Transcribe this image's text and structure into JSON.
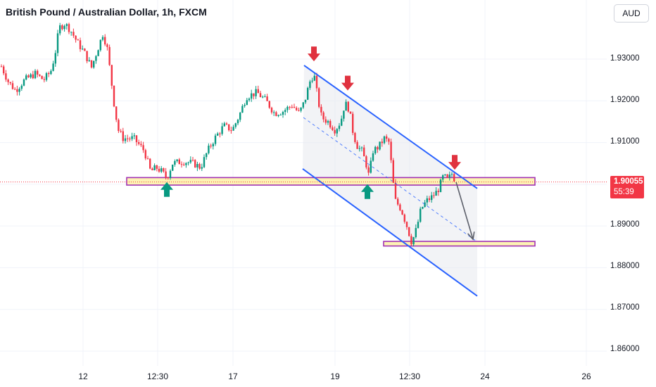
{
  "title": "British Pound / Australian Dollar, 1h, FXCM",
  "currency_button": "AUD",
  "price_axis": {
    "labels": [
      "1.93000",
      "1.92000",
      "1.91000",
      "1.90000",
      "1.89000",
      "1.88000",
      "1.87000",
      "1.86000"
    ]
  },
  "time_axis": {
    "labels": [
      "12",
      "12:30",
      "17",
      "19",
      "12:30",
      "24",
      "26"
    ]
  },
  "last_price": {
    "value": "1.90055",
    "countdown": "55:39"
  },
  "colors": {
    "up": "#089981",
    "down": "#f23645",
    "channel": "#2962ff",
    "zone_fill": "#fdf3b0",
    "zone_border": "#9c27b0",
    "arrow_down": "#e0323f",
    "arrow_up": "#089981",
    "projection": "#5d606b"
  },
  "chart_data": {
    "type": "candlestick",
    "title": "British Pound / Australian Dollar, 1h, FXCM",
    "y_axis_range": [
      1.856,
      1.937
    ],
    "close_path": [
      {
        "x": 0,
        "y": 1.929
      },
      {
        "x": 12,
        "y": 1.9245
      },
      {
        "x": 22,
        "y": 1.9225
      },
      {
        "x": 35,
        "y": 1.925
      },
      {
        "x": 50,
        "y": 1.9265
      },
      {
        "x": 62,
        "y": 1.925
      },
      {
        "x": 72,
        "y": 1.927
      },
      {
        "x": 78,
        "y": 1.931
      },
      {
        "x": 84,
        "y": 1.9375
      },
      {
        "x": 92,
        "y": 1.9385
      },
      {
        "x": 100,
        "y": 1.937
      },
      {
        "x": 110,
        "y": 1.934
      },
      {
        "x": 120,
        "y": 1.9315
      },
      {
        "x": 130,
        "y": 1.928
      },
      {
        "x": 138,
        "y": 1.932
      },
      {
        "x": 146,
        "y": 1.936
      },
      {
        "x": 152,
        "y": 1.933
      },
      {
        "x": 158,
        "y": 1.925
      },
      {
        "x": 163,
        "y": 1.918
      },
      {
        "x": 168,
        "y": 1.913
      },
      {
        "x": 175,
        "y": 1.911
      },
      {
        "x": 190,
        "y": 1.911
      },
      {
        "x": 205,
        "y": 1.908
      },
      {
        "x": 214,
        "y": 1.903
      },
      {
        "x": 222,
        "y": 1.904
      },
      {
        "x": 230,
        "y": 1.903
      },
      {
        "x": 237,
        "y": 1.9015
      },
      {
        "x": 245,
        "y": 1.905
      },
      {
        "x": 260,
        "y": 1.9055
      },
      {
        "x": 275,
        "y": 1.905
      },
      {
        "x": 285,
        "y": 1.904
      },
      {
        "x": 295,
        "y": 1.908
      },
      {
        "x": 305,
        "y": 1.911
      },
      {
        "x": 318,
        "y": 1.914
      },
      {
        "x": 330,
        "y": 1.913
      },
      {
        "x": 340,
        "y": 1.9165
      },
      {
        "x": 350,
        "y": 1.921
      },
      {
        "x": 365,
        "y": 1.922
      },
      {
        "x": 378,
        "y": 1.92
      },
      {
        "x": 390,
        "y": 1.917
      },
      {
        "x": 402,
        "y": 1.9175
      },
      {
        "x": 415,
        "y": 1.919
      },
      {
        "x": 425,
        "y": 1.917
      },
      {
        "x": 433,
        "y": 1.92
      },
      {
        "x": 440,
        "y": 1.9245
      },
      {
        "x": 446,
        "y": 1.9265
      },
      {
        "x": 452,
        "y": 1.92
      },
      {
        "x": 457,
        "y": 1.916
      },
      {
        "x": 466,
        "y": 1.915
      },
      {
        "x": 476,
        "y": 1.913
      },
      {
        "x": 484,
        "y": 1.915
      },
      {
        "x": 490,
        "y": 1.9195
      },
      {
        "x": 496,
        "y": 1.918
      },
      {
        "x": 502,
        "y": 1.912
      },
      {
        "x": 508,
        "y": 1.909
      },
      {
        "x": 514,
        "y": 1.908
      },
      {
        "x": 520,
        "y": 1.905
      },
      {
        "x": 524,
        "y": 1.902
      },
      {
        "x": 530,
        "y": 1.908
      },
      {
        "x": 538,
        "y": 1.909
      },
      {
        "x": 546,
        "y": 1.911
      },
      {
        "x": 553,
        "y": 1.91
      },
      {
        "x": 558,
        "y": 1.901
      },
      {
        "x": 562,
        "y": 1.896
      },
      {
        "x": 570,
        "y": 1.894
      },
      {
        "x": 578,
        "y": 1.89
      },
      {
        "x": 585,
        "y": 1.886
      },
      {
        "x": 592,
        "y": 1.8895
      },
      {
        "x": 598,
        "y": 1.894
      },
      {
        "x": 606,
        "y": 1.896
      },
      {
        "x": 614,
        "y": 1.897
      },
      {
        "x": 622,
        "y": 1.8985
      },
      {
        "x": 630,
        "y": 1.902
      },
      {
        "x": 636,
        "y": 1.901
      },
      {
        "x": 642,
        "y": 1.9025
      },
      {
        "x": 648,
        "y": 1.9005
      }
    ],
    "channel": {
      "upper": [
        {
          "x": 432,
          "y": 1.9285
        },
        {
          "x": 678,
          "y": 1.899
        }
      ],
      "lower": [
        {
          "x": 430,
          "y": 1.9037
        },
        {
          "x": 678,
          "y": 1.8732
        }
      ],
      "midline": [
        {
          "x": 431,
          "y": 1.916
        },
        {
          "x": 678,
          "y": 1.8862
        }
      ]
    },
    "zones": [
      {
        "from_x": 180,
        "to_x": 760,
        "low": 1.8998,
        "high": 1.9016
      },
      {
        "from_x": 545,
        "to_x": 760,
        "low": 1.8852,
        "high": 1.8863
      }
    ],
    "annotations": [
      {
        "kind": "arrow-down",
        "x": 446,
        "y": 1.931
      },
      {
        "kind": "arrow-down",
        "x": 494,
        "y": 1.924
      },
      {
        "kind": "arrow-down",
        "x": 646,
        "y": 1.905
      },
      {
        "kind": "arrow-up",
        "x": 237,
        "y": 1.899
      },
      {
        "kind": "arrow-up",
        "x": 522,
        "y": 1.8985
      }
    ],
    "projection": [
      {
        "x": 648,
        "y": 1.9005
      },
      {
        "x": 672,
        "y": 1.8868
      }
    ],
    "last_price": 1.90055
  }
}
